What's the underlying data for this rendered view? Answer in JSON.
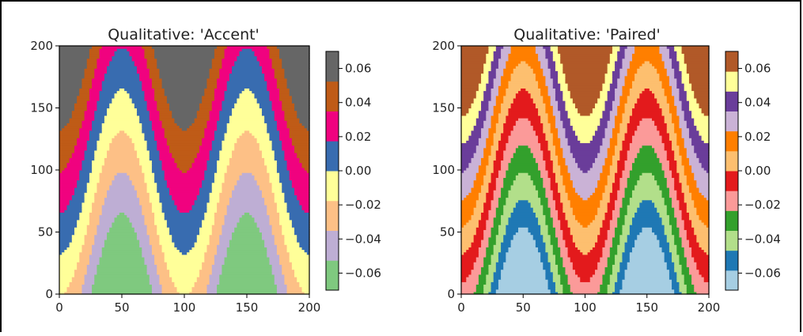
{
  "chart_data": [
    {
      "type": "heatmap",
      "title": "Qualitative: 'Accent'",
      "xlim": [
        0,
        200
      ],
      "ylim": [
        0,
        200
      ],
      "x_ticks": [
        "0",
        "50",
        "100",
        "150",
        "200"
      ],
      "y_ticks": [
        "0",
        "50",
        "100",
        "150",
        "200"
      ],
      "colorbar": {
        "range": [
          -0.07,
          0.07
        ],
        "ticks": [
          "0.06",
          "0.04",
          "0.02",
          "0.00",
          "−0.02",
          "−0.04",
          "−0.06"
        ],
        "tick_values": [
          0.06,
          0.04,
          0.02,
          0.0,
          -0.02,
          -0.04,
          -0.06
        ],
        "colors": [
          "#7fc97f",
          "#beaed4",
          "#fdc086",
          "#ffff99",
          "#386cb0",
          "#f0027f",
          "#bf5b17",
          "#666666"
        ]
      }
    },
    {
      "type": "heatmap",
      "title": "Qualitative: 'Paired'",
      "xlim": [
        0,
        200
      ],
      "ylim": [
        0,
        200
      ],
      "x_ticks": [
        "0",
        "50",
        "100",
        "150",
        "200"
      ],
      "y_ticks": [
        "0",
        "50",
        "100",
        "150",
        "200"
      ],
      "colorbar": {
        "range": [
          -0.07,
          0.07
        ],
        "ticks": [
          "0.06",
          "0.04",
          "0.02",
          "0.00",
          "−0.02",
          "−0.04",
          "−0.06"
        ],
        "tick_values": [
          0.06,
          0.04,
          0.02,
          0.0,
          -0.02,
          -0.04,
          -0.06
        ],
        "colors": [
          "#a6cee3",
          "#1f78b4",
          "#b2df8a",
          "#33a02c",
          "#fb9a99",
          "#e31a1c",
          "#fdbf6f",
          "#ff7f00",
          "#cab2d6",
          "#6a3d9a",
          "#ffff99",
          "#b15928"
        ]
      }
    }
  ]
}
